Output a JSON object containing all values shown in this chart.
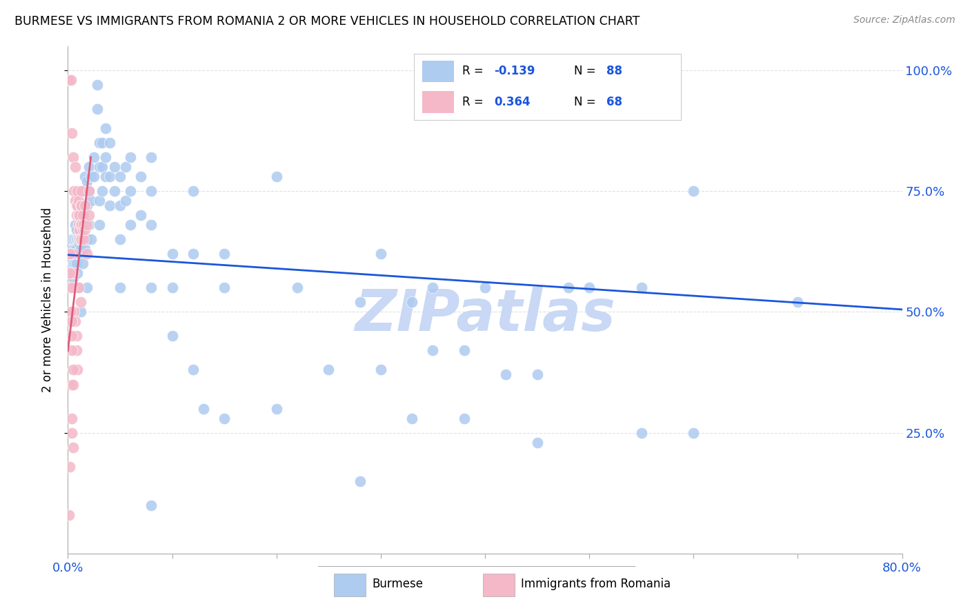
{
  "title": "BURMESE VS IMMIGRANTS FROM ROMANIA 2 OR MORE VEHICLES IN HOUSEHOLD CORRELATION CHART",
  "source": "Source: ZipAtlas.com",
  "ylabel": "2 or more Vehicles in Household",
  "legend_label1": "Burmese",
  "legend_label2": "Immigrants from Romania",
  "R_blue": -0.139,
  "N_blue": 88,
  "R_pink": 0.364,
  "N_pink": 68,
  "blue_color": "#aecbf0",
  "pink_color": "#f4b8c8",
  "blue_line_color": "#1a56db",
  "pink_line_color": "#e05a7a",
  "blue_scatter": [
    [
      0.002,
      0.62
    ],
    [
      0.003,
      0.6
    ],
    [
      0.003,
      0.58
    ],
    [
      0.004,
      0.65
    ],
    [
      0.004,
      0.62
    ],
    [
      0.005,
      0.63
    ],
    [
      0.005,
      0.6
    ],
    [
      0.005,
      0.57
    ],
    [
      0.006,
      0.65
    ],
    [
      0.006,
      0.62
    ],
    [
      0.006,
      0.6
    ],
    [
      0.006,
      0.58
    ],
    [
      0.007,
      0.68
    ],
    [
      0.007,
      0.65
    ],
    [
      0.007,
      0.63
    ],
    [
      0.007,
      0.6
    ],
    [
      0.008,
      0.67
    ],
    [
      0.008,
      0.65
    ],
    [
      0.008,
      0.63
    ],
    [
      0.008,
      0.6
    ],
    [
      0.009,
      0.65
    ],
    [
      0.009,
      0.62
    ],
    [
      0.009,
      0.58
    ],
    [
      0.01,
      0.68
    ],
    [
      0.01,
      0.65
    ],
    [
      0.01,
      0.62
    ],
    [
      0.01,
      0.55
    ],
    [
      0.011,
      0.7
    ],
    [
      0.011,
      0.67
    ],
    [
      0.011,
      0.64
    ],
    [
      0.012,
      0.72
    ],
    [
      0.012,
      0.68
    ],
    [
      0.012,
      0.63
    ],
    [
      0.012,
      0.5
    ],
    [
      0.014,
      0.75
    ],
    [
      0.014,
      0.7
    ],
    [
      0.014,
      0.65
    ],
    [
      0.014,
      0.6
    ],
    [
      0.016,
      0.78
    ],
    [
      0.016,
      0.75
    ],
    [
      0.016,
      0.68
    ],
    [
      0.016,
      0.63
    ],
    [
      0.018,
      0.77
    ],
    [
      0.018,
      0.72
    ],
    [
      0.018,
      0.65
    ],
    [
      0.018,
      0.55
    ],
    [
      0.02,
      0.8
    ],
    [
      0.02,
      0.75
    ],
    [
      0.02,
      0.68
    ],
    [
      0.022,
      0.78
    ],
    [
      0.022,
      0.73
    ],
    [
      0.022,
      0.65
    ],
    [
      0.025,
      0.82
    ],
    [
      0.025,
      0.78
    ],
    [
      0.028,
      0.97
    ],
    [
      0.028,
      0.92
    ],
    [
      0.03,
      0.85
    ],
    [
      0.03,
      0.8
    ],
    [
      0.03,
      0.73
    ],
    [
      0.03,
      0.68
    ],
    [
      0.033,
      0.85
    ],
    [
      0.033,
      0.8
    ],
    [
      0.033,
      0.75
    ],
    [
      0.036,
      0.88
    ],
    [
      0.036,
      0.82
    ],
    [
      0.036,
      0.78
    ],
    [
      0.04,
      0.85
    ],
    [
      0.04,
      0.78
    ],
    [
      0.04,
      0.72
    ],
    [
      0.045,
      0.8
    ],
    [
      0.045,
      0.75
    ],
    [
      0.05,
      0.78
    ],
    [
      0.05,
      0.72
    ],
    [
      0.05,
      0.65
    ],
    [
      0.05,
      0.55
    ],
    [
      0.055,
      0.8
    ],
    [
      0.055,
      0.73
    ],
    [
      0.06,
      0.82
    ],
    [
      0.06,
      0.75
    ],
    [
      0.06,
      0.68
    ],
    [
      0.07,
      0.78
    ],
    [
      0.07,
      0.7
    ],
    [
      0.08,
      0.82
    ],
    [
      0.08,
      0.75
    ],
    [
      0.08,
      0.68
    ],
    [
      0.08,
      0.55
    ],
    [
      0.1,
      0.62
    ],
    [
      0.1,
      0.55
    ],
    [
      0.12,
      0.75
    ],
    [
      0.12,
      0.62
    ],
    [
      0.15,
      0.62
    ],
    [
      0.15,
      0.55
    ],
    [
      0.2,
      0.78
    ],
    [
      0.22,
      0.55
    ],
    [
      0.3,
      0.62
    ],
    [
      0.35,
      0.55
    ],
    [
      0.4,
      0.55
    ],
    [
      0.55,
      0.55
    ],
    [
      0.6,
      0.75
    ],
    [
      0.7,
      0.52
    ],
    [
      0.1,
      0.45
    ],
    [
      0.12,
      0.38
    ],
    [
      0.13,
      0.3
    ],
    [
      0.15,
      0.28
    ],
    [
      0.2,
      0.3
    ],
    [
      0.25,
      0.38
    ],
    [
      0.3,
      0.38
    ],
    [
      0.35,
      0.42
    ],
    [
      0.38,
      0.42
    ],
    [
      0.42,
      0.37
    ],
    [
      0.45,
      0.37
    ],
    [
      0.48,
      0.55
    ],
    [
      0.5,
      0.55
    ],
    [
      0.28,
      0.52
    ],
    [
      0.33,
      0.52
    ],
    [
      0.08,
      0.1
    ],
    [
      0.28,
      0.15
    ],
    [
      0.33,
      0.28
    ],
    [
      0.38,
      0.28
    ],
    [
      0.45,
      0.23
    ],
    [
      0.55,
      0.25
    ],
    [
      0.6,
      0.25
    ]
  ],
  "pink_scatter": [
    [
      0.001,
      0.98
    ],
    [
      0.003,
      0.98
    ],
    [
      0.004,
      0.87
    ],
    [
      0.005,
      0.82
    ],
    [
      0.007,
      0.8
    ],
    [
      0.006,
      0.75
    ],
    [
      0.007,
      0.73
    ],
    [
      0.008,
      0.72
    ],
    [
      0.008,
      0.7
    ],
    [
      0.009,
      0.75
    ],
    [
      0.009,
      0.72
    ],
    [
      0.01,
      0.7
    ],
    [
      0.01,
      0.68
    ],
    [
      0.01,
      0.73
    ],
    [
      0.011,
      0.7
    ],
    [
      0.011,
      0.67
    ],
    [
      0.011,
      0.65
    ],
    [
      0.012,
      0.72
    ],
    [
      0.012,
      0.68
    ],
    [
      0.012,
      0.65
    ],
    [
      0.013,
      0.75
    ],
    [
      0.013,
      0.72
    ],
    [
      0.013,
      0.68
    ],
    [
      0.013,
      0.65
    ],
    [
      0.014,
      0.7
    ],
    [
      0.014,
      0.67
    ],
    [
      0.015,
      0.68
    ],
    [
      0.015,
      0.65
    ],
    [
      0.016,
      0.72
    ],
    [
      0.016,
      0.67
    ],
    [
      0.018,
      0.68
    ],
    [
      0.018,
      0.62
    ],
    [
      0.02,
      0.75
    ],
    [
      0.02,
      0.7
    ],
    [
      0.005,
      0.62
    ],
    [
      0.005,
      0.58
    ],
    [
      0.006,
      0.55
    ],
    [
      0.006,
      0.5
    ],
    [
      0.007,
      0.48
    ],
    [
      0.008,
      0.45
    ],
    [
      0.008,
      0.42
    ],
    [
      0.009,
      0.38
    ],
    [
      0.01,
      0.55
    ],
    [
      0.012,
      0.52
    ],
    [
      0.003,
      0.35
    ],
    [
      0.004,
      0.28
    ],
    [
      0.004,
      0.25
    ],
    [
      0.005,
      0.22
    ],
    [
      0.002,
      0.18
    ],
    [
      0.001,
      0.08
    ],
    [
      0.002,
      0.62
    ],
    [
      0.002,
      0.58
    ],
    [
      0.003,
      0.55
    ],
    [
      0.003,
      0.5
    ],
    [
      0.004,
      0.48
    ],
    [
      0.004,
      0.45
    ],
    [
      0.004,
      0.42
    ],
    [
      0.005,
      0.38
    ],
    [
      0.005,
      0.35
    ]
  ],
  "blue_trend_x": [
    0.0,
    0.8
  ],
  "blue_trend_y": [
    0.618,
    0.505
  ],
  "pink_trend_x": [
    0.0,
    0.022
  ],
  "pink_trend_y": [
    0.42,
    0.82
  ],
  "xmin": 0.0,
  "xmax": 0.8,
  "ymin": 0.0,
  "ymax": 1.05,
  "ytick_values": [
    0.25,
    0.5,
    0.75,
    1.0
  ],
  "xtick_values": [
    0.0,
    0.1,
    0.2,
    0.3,
    0.4,
    0.5,
    0.6,
    0.7,
    0.8
  ],
  "watermark": "ZIPatlas",
  "watermark_color": "#c8d8f5",
  "grid_color": "#e0e0e0",
  "axis_color": "#aaaaaa"
}
